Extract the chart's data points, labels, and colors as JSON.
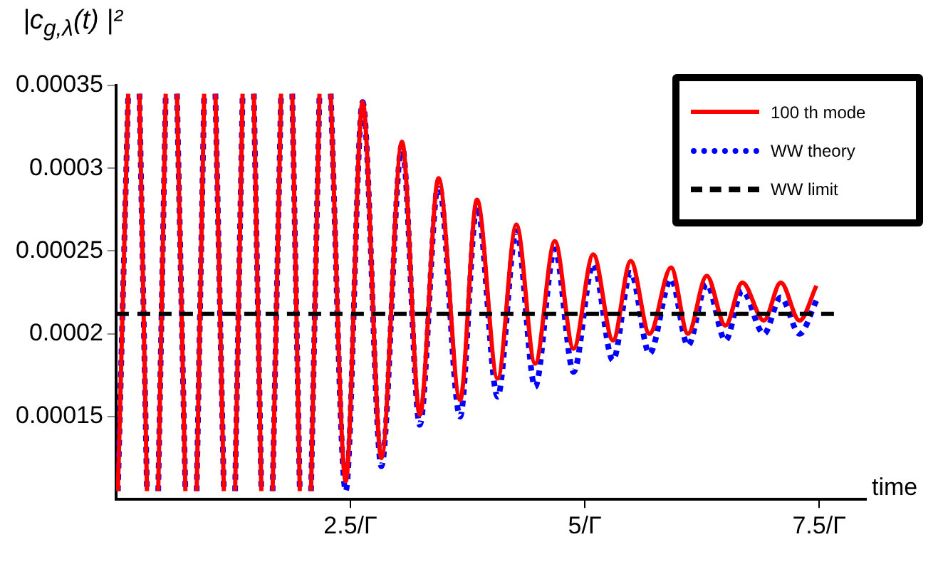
{
  "chart_data": {
    "type": "line",
    "ylabel": "|c$_{g,λ}$(t) |²",
    "xlabel": "time",
    "xlim": [
      0,
      8
    ],
    "xticks": [
      {
        "value": 2.5,
        "label": "2.5/Γ"
      },
      {
        "value": 5,
        "label": "5/Γ"
      },
      {
        "value": 7.5,
        "label": "7.5/Γ"
      }
    ],
    "ylim": [
      0.0001,
      0.00035
    ],
    "yticks": [
      0.00015,
      0.0002,
      0.00025,
      0.0003,
      0.00035
    ],
    "grid": false,
    "legend": "top right",
    "marker": "none",
    "x": [
      0.02,
      0.13,
      0.19,
      0.25,
      0.33,
      0.39,
      0.45,
      0.53,
      0.59,
      0.65,
      0.74,
      0.8,
      0.86,
      0.94,
      1.0,
      1.06,
      1.15,
      1.21,
      1.27,
      1.35,
      1.41,
      1.47,
      1.55,
      1.61,
      1.67,
      1.76,
      1.82,
      1.88,
      1.96,
      2.02,
      2.08,
      2.17,
      2.23,
      2.29,
      2.45,
      2.63,
      2.83,
      3.05,
      3.24,
      3.44,
      3.67,
      3.85,
      4.07,
      4.27,
      4.47,
      4.68,
      4.88,
      5.09,
      5.3,
      5.49,
      5.69,
      5.92,
      6.1,
      6.3,
      6.5,
      6.68,
      6.91,
      7.09,
      7.29,
      7.47
    ],
    "series": [
      {
        "name": "100 th mode",
        "color": "#ff0000",
        "line_style": "solid",
        "values": [
          0.000105,
          0.000345,
          null,
          0.000345,
          0.000105,
          null,
          0.000105,
          0.000345,
          null,
          0.000345,
          0.000105,
          null,
          0.000105,
          0.000345,
          null,
          0.000345,
          0.000105,
          null,
          0.000105,
          0.000345,
          null,
          0.000345,
          0.000105,
          null,
          0.000105,
          0.000345,
          null,
          0.000345,
          0.000105,
          null,
          0.000105,
          0.000345,
          null,
          0.000345,
          0.000111,
          0.00034,
          0.000125,
          0.000316,
          0.000151,
          0.000294,
          0.00016,
          0.000281,
          0.000173,
          0.000266,
          0.000182,
          0.000256,
          0.000191,
          0.000248,
          0.000196,
          0.000244,
          0.0002,
          0.00024,
          0.0002,
          0.000235,
          0.000205,
          0.000231,
          0.000208,
          0.000231,
          0.000208,
          0.000229
        ]
      },
      {
        "name": "WW theory",
        "color": "#0000ff",
        "line_style": "dotted",
        "values": [
          0.000105,
          0.000345,
          null,
          0.000345,
          0.000105,
          null,
          0.000105,
          0.000345,
          null,
          0.000345,
          0.000105,
          null,
          0.000105,
          0.000345,
          null,
          0.000345,
          0.000105,
          null,
          0.000105,
          0.000345,
          null,
          0.000345,
          0.000105,
          null,
          0.000105,
          0.000345,
          null,
          0.000345,
          0.000105,
          null,
          0.000105,
          0.000345,
          null,
          0.000345,
          0.000105,
          0.00034,
          0.00012,
          0.000314,
          0.000145,
          0.000291,
          0.00015,
          0.000277,
          0.000162,
          0.000262,
          0.000168,
          0.000251,
          0.000177,
          0.000242,
          0.000184,
          0.000237,
          0.000188,
          0.000233,
          0.000193,
          0.00023,
          0.000196,
          0.000226,
          0.0002,
          0.000222,
          0.0002,
          0.00022
        ]
      }
    ],
    "ref_lines": [
      {
        "axis": "y",
        "value": 0.000212,
        "label": "WW limit",
        "color": "#000000",
        "line_style": "dashed"
      }
    ]
  }
}
